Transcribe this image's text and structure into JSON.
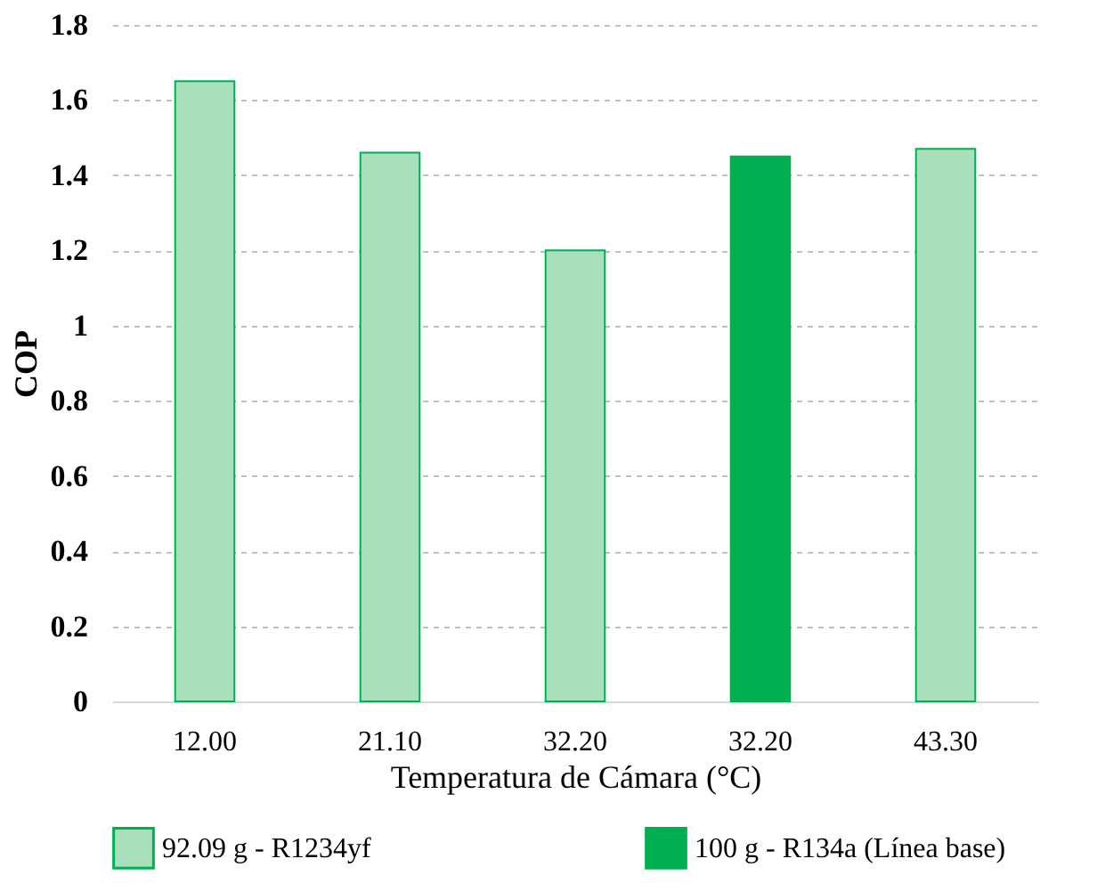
{
  "chart_data": {
    "type": "bar",
    "xlabel": "Temperatura de Cámara (°C)",
    "ylabel": "COP",
    "categories": [
      "12.00",
      "21.10",
      "32.20",
      "32.20",
      "43.30"
    ],
    "series": [
      {
        "name": "92.09 g - R1234yf",
        "color": "#a8e0bc",
        "values": [
          1.65,
          1.46,
          1.2,
          null,
          1.47
        ]
      },
      {
        "name": "100 g - R134a (Línea base)",
        "color": "#00b050",
        "values": [
          null,
          null,
          null,
          1.45,
          null
        ]
      }
    ],
    "ylim": [
      0,
      1.8
    ],
    "yticks": [
      0,
      0.2,
      0.4,
      0.6,
      0.8,
      1,
      1.2,
      1.4,
      1.6,
      1.8
    ],
    "grid": "y",
    "legend": "bottom"
  }
}
